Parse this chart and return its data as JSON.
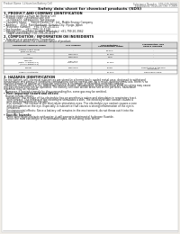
{
  "bg_color": "#f0ede8",
  "page_bg": "#ffffff",
  "header_left": "Product Name: Lithium Ion Battery Cell",
  "header_right_line1": "Substance Number: SDS-049-00010",
  "header_right_line2": "Established / Revision: Dec.7,2009",
  "main_title": "Safety data sheet for chemical products (SDS)",
  "section1_title": "1. PRODUCT AND COMPANY IDENTIFICATION",
  "s1_lines": [
    "• Product name: Lithium Ion Battery Cell",
    "• Product code: Cylindrical-type cell",
    "    (IHF886600, IHF886600L, IHF-B860A)",
    "• Company name:     Sanyo Electric Co., Ltd., Mobile Energy Company",
    "• Address:    2001  Kamitanakami, Sumoto-City, Hyogo, Japan",
    "• Telephone number:    +81-(799)-20-4111",
    "• Fax number:    +81-(799)-26-4129",
    "• Emergency telephone number (Weekday) +81-799-20-3962",
    "    (Night and holiday) +81-799-26-4129"
  ],
  "section2_title": "2. COMPOSITION / INFORMATION ON INGREDIENTS",
  "s2_intro": "• Substance or preparation: Preparation",
  "s2_sub": "  • Information about the chemical nature of product:",
  "table_header_labels": [
    "Component chemical name",
    "CAS number",
    "Concentration /\nConcentration range",
    "Classification and\nhazard labeling"
  ],
  "table_rows": [
    [
      "Lithium cobalt oxide\n(LiMn-Co-Ni-O₂)",
      "-",
      "30-60%",
      "-"
    ],
    [
      "Iron",
      "7439-89-6",
      "15-25%",
      "-"
    ],
    [
      "Aluminum",
      "7429-90-5",
      "2-5%",
      "-"
    ],
    [
      "Graphite\n(Metal in graphite-1)\n(All-Mn graphite-1)",
      "7782-42-5\n1770544-2",
      "10-25%",
      "-"
    ],
    [
      "Copper",
      "7440-50-8",
      "5-15%",
      "Sensitization of the skin\ngroup No.2"
    ],
    [
      "Organic electrolyte",
      "-",
      "10-20%",
      "Flammable liquid"
    ]
  ],
  "section3_title": "3. HAZARDS IDENTIFICATION",
  "s3_lines": [
    "For the battery cell, chemical substances are stored in a hermetically sealed metal case, designed to withstand",
    "temperature and pressure variations-combinations during normal use. As a result, during normal use, there is no",
    "physical danger of ignition or explosion and there is no danger of hazardous materials leakage.",
    "  However, if exposed to a fire, added mechanical shocks, decomposed, violent electrical short-circuiting may cause",
    "the gas release vent not be operated. The battery cell case will be breached or fire particles, hazardous",
    "materials may be released.",
    "  Moreover, if heated strongly by the surrounding fire, some gas may be emitted."
  ],
  "s3_bullet1": "• Most important hazard and effects:",
  "s3_human": "Human health effects:",
  "s3_detail_lines": [
    "    Inhalation: The release of the electrolyte has an anesthesia action and stimulates in respiratory tract.",
    "    Skin contact: The release of the electrolyte stimulates a skin. The electrolyte skin contact causes a",
    "    sore and stimulation on the skin.",
    "    Eye contact: The release of the electrolyte stimulates eyes. The electrolyte eye contact causes a sore",
    "    and stimulation on the eye. Especially, a substance that causes a strong inflammation of the eye is",
    "    contained.",
    "",
    "    Environmental effects: Since a battery cell remains in the environment, do not throw out it into the",
    "    environment."
  ],
  "s3_bullet2": "• Specific hazards:",
  "s3_spec_lines": [
    "    If the electrolyte contacts with water, it will generate detrimental hydrogen fluoride.",
    "    Since the read electrolyte is inflammable liquid, do not bring close to fire."
  ]
}
